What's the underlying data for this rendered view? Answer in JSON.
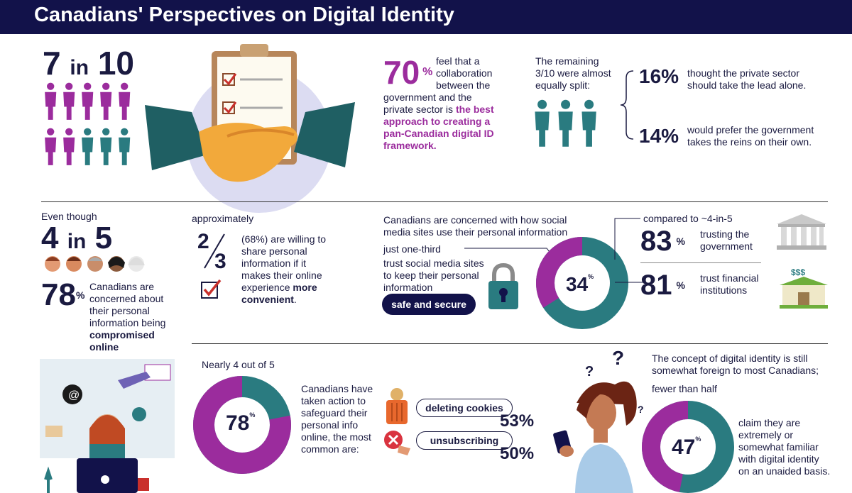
{
  "header": {
    "title": "Canadians' Perspectives on Digital Identity"
  },
  "colors": {
    "navy": "#12124a",
    "purple": "#9b2c9d",
    "teal": "#2a7b80"
  },
  "section1": {
    "ratio_num": "7",
    "ratio_in": "in",
    "ratio_den": "10",
    "people_total": 10,
    "people_highlighted": 7,
    "stat_value": "70",
    "stat_unit": "%",
    "text_lines": [
      "feel that a",
      "collaboration",
      "between the",
      "government and the",
      "private sector is "
    ],
    "text_bold_1": "the best",
    "bold_lines": [
      "approach to creating a",
      "pan-Canadian digital ID",
      "framework."
    ],
    "remaining_lines": [
      "The remaining",
      "3/10 were almost",
      "equally split:"
    ],
    "split": [
      {
        "value": "16%",
        "lines": [
          "thought the private sector",
          "should take the lead alone."
        ]
      },
      {
        "value": "14%",
        "lines": [
          "would prefer the government",
          "takes the reins on their own."
        ]
      }
    ]
  },
  "section2": {
    "even_though": "Even though",
    "ratio_num": "4",
    "ratio_in": "in",
    "ratio_den": "5",
    "stat_value": "78",
    "stat_unit": "%",
    "concern_lines": [
      "Canadians are",
      "concerned about",
      "their personal",
      "information being"
    ],
    "concern_bold": [
      "compromised",
      "online"
    ],
    "approx": "approximately",
    "fraction_num": "2",
    "fraction_den": "3",
    "share_lines": [
      "(68%) are willing to",
      "share personal",
      "information if it",
      "makes their online"
    ],
    "share_end": "experience ",
    "share_bold": "more",
    "share_bold2": "convenient",
    "share_period": ".",
    "social_lines": [
      "Canadians are concerned with how social",
      "media sites use their personal information"
    ],
    "one_third": "just one-third",
    "trust_lines": [
      "trust social media sites",
      "to keep their personal",
      "information"
    ],
    "safe_label": "safe and secure",
    "donut_value": "34",
    "donut_unit": "%",
    "donut_fraction": 0.34,
    "compared": "compared to ~4-in-5",
    "trust_gov_value": "83",
    "trust_gov_unit": "%",
    "trust_gov_lines": [
      "trusting the",
      "government"
    ],
    "trust_fin_value": "81",
    "trust_fin_unit": "%",
    "trust_fin_lines": [
      "trust financial",
      "institutions"
    ]
  },
  "section3": {
    "nearly": "Nearly 4 out of 5",
    "donut_value": "78",
    "donut_unit": "%",
    "donut_fraction": 0.78,
    "action_lines": [
      "Canadians have",
      "taken action to",
      "safeguard their",
      "personal info",
      "online, the most",
      "common are:"
    ],
    "actions": [
      {
        "label": "deleting cookies",
        "value": "53%"
      },
      {
        "label": "unsubscribing",
        "value": "50%"
      }
    ],
    "concept_lines": [
      "The concept of digital identity is still",
      "somewhat foreign to most Canadians;"
    ],
    "fewer": "fewer than half",
    "donut2_value": "47",
    "donut2_unit": "%",
    "donut2_fraction": 0.47,
    "claim_lines": [
      "claim they are",
      "extremely or",
      "somewhat familiar",
      "with digital identity",
      "on an unaided basis."
    ]
  }
}
